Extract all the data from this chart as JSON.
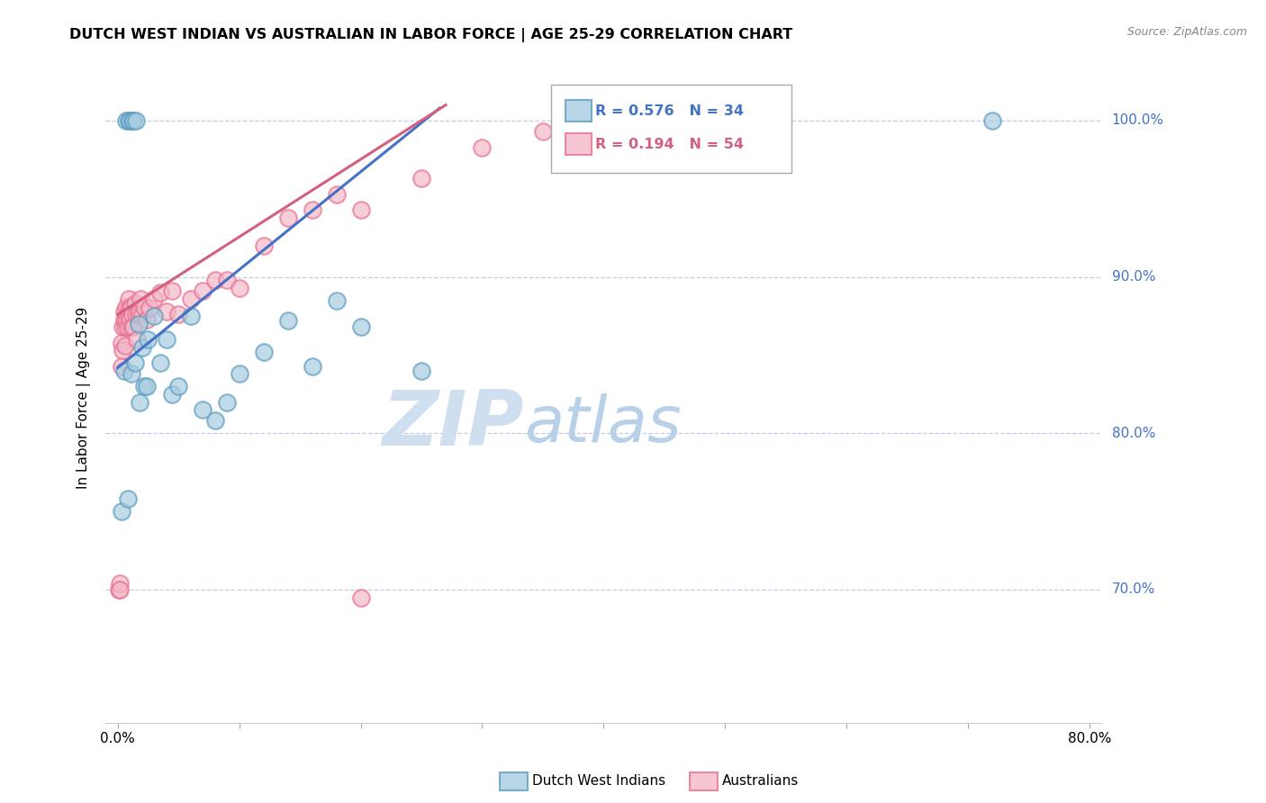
{
  "title": "DUTCH WEST INDIAN VS AUSTRALIAN IN LABOR FORCE | AGE 25-29 CORRELATION CHART",
  "source": "Source: ZipAtlas.com",
  "ylabel": "In Labor Force | Age 25-29",
  "legend_blue_r": "0.576",
  "legend_blue_n": "34",
  "legend_pink_r": "0.194",
  "legend_pink_n": "54",
  "legend_blue_label": "Dutch West Indians",
  "legend_pink_label": "Australians",
  "xlim": [
    -0.001,
    0.081
  ],
  "ylim": [
    0.615,
    1.03
  ],
  "xtick_positions": [
    0.0,
    0.01,
    0.02,
    0.03,
    0.04,
    0.05,
    0.06,
    0.07,
    0.08
  ],
  "xtick_labels": [
    "0.0%",
    "",
    "",
    "",
    "",
    "",
    "",
    "",
    "80.0%"
  ],
  "ytick_positions": [
    0.7,
    0.8,
    0.9,
    1.0
  ],
  "ytick_labels_right": [
    "70.0%",
    "80.0%",
    "90.0%",
    "100.0%"
  ],
  "blue_scatter_x": [
    0.0003,
    0.0005,
    0.0007,
    0.0009,
    0.001,
    0.0012,
    0.0013,
    0.0015,
    0.0017,
    0.002,
    0.0022,
    0.0025,
    0.003,
    0.0035,
    0.004,
    0.0045,
    0.005,
    0.006,
    0.007,
    0.008,
    0.009,
    0.01,
    0.012,
    0.014,
    0.016,
    0.018,
    0.02,
    0.025,
    0.0008,
    0.0011,
    0.0014,
    0.0018,
    0.0024,
    0.072
  ],
  "blue_scatter_y": [
    0.75,
    0.84,
    1.0,
    1.0,
    1.0,
    1.0,
    1.0,
    1.0,
    0.87,
    0.855,
    0.83,
    0.86,
    0.875,
    0.845,
    0.86,
    0.825,
    0.83,
    0.875,
    0.815,
    0.808,
    0.82,
    0.838,
    0.852,
    0.872,
    0.843,
    0.885,
    0.868,
    0.84,
    0.758,
    0.838,
    0.845,
    0.82,
    0.83,
    1.0
  ],
  "pink_scatter_x": [
    0.0001,
    0.0002,
    0.0003,
    0.0003,
    0.0004,
    0.0004,
    0.0005,
    0.0005,
    0.0006,
    0.0006,
    0.0007,
    0.0007,
    0.0008,
    0.0008,
    0.0009,
    0.0009,
    0.001,
    0.001,
    0.0011,
    0.0011,
    0.0012,
    0.0013,
    0.0014,
    0.0015,
    0.0016,
    0.0017,
    0.0018,
    0.0019,
    0.002,
    0.0022,
    0.0024,
    0.0026,
    0.003,
    0.0035,
    0.004,
    0.0045,
    0.005,
    0.006,
    0.007,
    0.008,
    0.009,
    0.01,
    0.012,
    0.014,
    0.016,
    0.018,
    0.02,
    0.025,
    0.03,
    0.035,
    0.04,
    0.05,
    0.0002,
    0.02
  ],
  "pink_scatter_y": [
    0.7,
    0.704,
    0.843,
    0.858,
    0.853,
    0.868,
    0.873,
    0.878,
    0.856,
    0.868,
    0.873,
    0.881,
    0.868,
    0.876,
    0.878,
    0.886,
    0.88,
    0.873,
    0.868,
    0.881,
    0.876,
    0.868,
    0.883,
    0.876,
    0.86,
    0.876,
    0.878,
    0.886,
    0.876,
    0.881,
    0.873,
    0.88,
    0.886,
    0.89,
    0.878,
    0.891,
    0.876,
    0.886,
    0.891,
    0.898,
    0.898,
    0.893,
    0.92,
    0.938,
    0.943,
    0.953,
    0.943,
    0.963,
    0.983,
    0.993,
    1.0,
    1.0,
    0.7,
    0.695
  ],
  "blue_line": [
    [
      0.0,
      0.0265
    ],
    [
      0.842,
      1.008
    ]
  ],
  "pink_line": [
    [
      0.0,
      0.027
    ],
    [
      0.876,
      1.01
    ]
  ],
  "blue_color": "#a8cce0",
  "blue_edge_color": "#5b9dc0",
  "pink_color": "#f4b8c8",
  "pink_edge_color": "#e87090",
  "blue_line_color": "#4472c4",
  "pink_line_color": "#d46080",
  "grid_color": "#c0cfe0",
  "title_color": "#000000",
  "right_axis_color": "#4472c4",
  "watermark_zip_color": "#d0dff0",
  "watermark_atlas_color": "#b8d0e8",
  "background_color": "#ffffff"
}
